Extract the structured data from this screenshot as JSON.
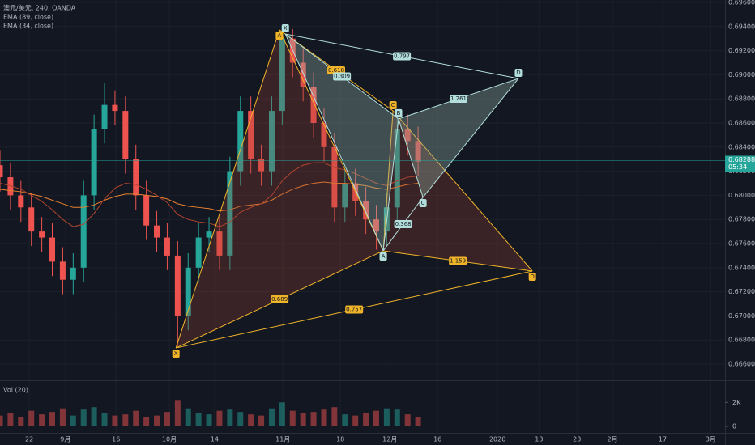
{
  "chart_data": {
    "type": "candlestick",
    "title": "澳元/美元, 240, OANDA",
    "indicators": [
      {
        "name": "EMA (89, close)",
        "color": "#e8812e",
        "values": [
          0.6805,
          0.6804,
          0.6803,
          0.6801,
          0.6799,
          0.6796,
          0.6793,
          0.679,
          0.679,
          0.6792,
          0.6796,
          0.6799,
          0.6801,
          0.6801,
          0.68,
          0.6799,
          0.6797,
          0.6793,
          0.6791,
          0.679,
          0.6789,
          0.6787,
          0.6788,
          0.6791,
          0.6792,
          0.6793,
          0.6796,
          0.6801,
          0.6805,
          0.6808,
          0.681,
          0.6811,
          0.681,
          0.681,
          0.6809,
          0.6808,
          0.6806,
          0.6805,
          0.6807,
          0.6809,
          0.681
        ]
      },
      {
        "name": "EMA (34, close)",
        "color": "#b5452f",
        "values": [
          0.681,
          0.6808,
          0.6805,
          0.68,
          0.6795,
          0.6788,
          0.678,
          0.6774,
          0.6776,
          0.6785,
          0.6797,
          0.6806,
          0.681,
          0.6809,
          0.6805,
          0.68,
          0.6794,
          0.6784,
          0.678,
          0.6778,
          0.6777,
          0.6774,
          0.6778,
          0.6786,
          0.679,
          0.6793,
          0.68,
          0.6812,
          0.682,
          0.6825,
          0.6827,
          0.6827,
          0.6823,
          0.6821,
          0.6818,
          0.6814,
          0.681,
          0.6808,
          0.6812,
          0.6815,
          0.6816
        ]
      }
    ],
    "volume_title": "Vol (20)",
    "up_color": "#26a69a",
    "down_color": "#ef5350",
    "x": [
      0,
      3,
      6,
      9,
      12,
      15,
      18,
      21,
      24,
      27,
      30,
      33,
      36,
      39,
      42,
      45,
      48,
      51,
      54,
      57,
      60,
      63,
      66,
      69,
      72,
      75,
      78,
      81,
      84,
      87,
      90,
      93,
      96,
      99,
      102,
      105,
      108,
      111,
      114,
      117,
      120
    ],
    "open": [
      0.6825,
      0.6815,
      0.68,
      0.679,
      0.677,
      0.6765,
      0.6745,
      0.673,
      0.674,
      0.68,
      0.6855,
      0.6875,
      0.687,
      0.683,
      0.68,
      0.6775,
      0.6765,
      0.675,
      0.67,
      0.674,
      0.6765,
      0.677,
      0.675,
      0.682,
      0.687,
      0.683,
      0.682,
      0.687,
      0.693,
      0.691,
      0.689,
      0.686,
      0.684,
      0.679,
      0.681,
      0.6795,
      0.678,
      0.677,
      0.679,
      0.6855,
      0.6845
    ],
    "high": [
      0.6837,
      0.6827,
      0.6812,
      0.6802,
      0.6782,
      0.6777,
      0.6757,
      0.6752,
      0.6812,
      0.6867,
      0.6893,
      0.6887,
      0.6882,
      0.6842,
      0.6812,
      0.6787,
      0.6777,
      0.6762,
      0.6752,
      0.6777,
      0.6782,
      0.6782,
      0.6832,
      0.6882,
      0.6882,
      0.6842,
      0.6882,
      0.694,
      0.6938,
      0.6922,
      0.6902,
      0.6872,
      0.6852,
      0.6822,
      0.6822,
      0.6807,
      0.6792,
      0.6802,
      0.6865,
      0.6867,
      0.6857
    ],
    "low": [
      0.6803,
      0.6788,
      0.6778,
      0.6758,
      0.6753,
      0.6733,
      0.6718,
      0.6718,
      0.6728,
      0.6788,
      0.6843,
      0.6858,
      0.6818,
      0.6788,
      0.6763,
      0.6753,
      0.6738,
      0.6675,
      0.6688,
      0.6728,
      0.6753,
      0.6738,
      0.6738,
      0.6808,
      0.6818,
      0.6808,
      0.6808,
      0.6858,
      0.6898,
      0.6878,
      0.6848,
      0.6828,
      0.6778,
      0.6778,
      0.6783,
      0.6768,
      0.6755,
      0.6758,
      0.6778,
      0.6833,
      0.6816
    ],
    "close": [
      0.6815,
      0.68,
      0.679,
      0.677,
      0.6765,
      0.6745,
      0.673,
      0.674,
      0.68,
      0.6855,
      0.6875,
      0.687,
      0.683,
      0.68,
      0.6775,
      0.6765,
      0.675,
      0.67,
      0.674,
      0.6765,
      0.677,
      0.675,
      0.682,
      0.687,
      0.683,
      0.682,
      0.687,
      0.693,
      0.691,
      0.689,
      0.686,
      0.684,
      0.679,
      0.681,
      0.6795,
      0.678,
      0.677,
      0.679,
      0.6855,
      0.6845,
      0.6828
    ],
    "volume": [
      900,
      1100,
      800,
      1300,
      1000,
      1200,
      1500,
      900,
      1400,
      1600,
      1100,
      900,
      1000,
      1300,
      800,
      900,
      1200,
      2200,
      1500,
      1100,
      1000,
      1300,
      1400,
      1200,
      1000,
      900,
      1500,
      2000,
      1300,
      1100,
      1200,
      1400,
      1600,
      1000,
      900,
      1100,
      1300,
      1500,
      1400,
      1000,
      800
    ],
    "xlim": [
      0,
      208.1
    ],
    "ylim": [
      0.66466,
      0.6962
    ],
    "vol_ylim": [
      0,
      3700
    ],
    "vol_ticks": [
      {
        "value": 2000,
        "label": "2K"
      },
      0
    ],
    "yticks": [
      {
        "value": 0.666,
        "label": "0.66600"
      },
      {
        "value": 0.668,
        "label": "0.66800"
      },
      {
        "value": 0.67,
        "label": "0.67000"
      },
      {
        "value": 0.672,
        "label": "0.67200"
      },
      {
        "value": 0.674,
        "label": "0.67400"
      },
      {
        "value": 0.676,
        "label": "0.67600"
      },
      {
        "value": 0.678,
        "label": "0.67800"
      },
      {
        "value": 0.68,
        "label": "0.68000"
      },
      {
        "value": 0.682,
        "label": "0.68200"
      },
      {
        "value": 0.684,
        "label": "0.68400"
      },
      {
        "value": 0.686,
        "label": "0.68600"
      },
      {
        "value": 0.688,
        "label": "0.68800"
      },
      {
        "value": 0.69,
        "label": "0.69000"
      },
      {
        "value": 0.692,
        "label": "0.69200"
      },
      {
        "value": 0.694,
        "label": "0.69400"
      },
      {
        "value": 0.696,
        "label": "0.69600"
      }
    ],
    "xticks": [
      {
        "value": 8.4,
        "label": "22"
      },
      {
        "value": 18.8,
        "label": "9月"
      },
      {
        "value": 33.3,
        "label": "16"
      },
      {
        "value": 48.6,
        "label": "10月"
      },
      {
        "value": 61.6,
        "label": "14"
      },
      {
        "value": 81.2,
        "label": "11月"
      },
      {
        "value": 97.7,
        "label": "18"
      },
      {
        "value": 111.9,
        "label": "12月"
      },
      {
        "value": 125.6,
        "label": "16"
      },
      {
        "value": 142.8,
        "label": "2020"
      },
      {
        "value": 154.7,
        "label": "13"
      },
      {
        "value": 165.6,
        "label": "23"
      },
      {
        "value": 175.8,
        "label": "2月"
      },
      {
        "value": 190.2,
        "label": "17"
      },
      {
        "value": 204,
        "label": "3月"
      }
    ],
    "last_price": 0.68288,
    "countdown": "05:34",
    "patterns": [
      {
        "color": "#f0b429",
        "fill": "rgba(160,70,50,0.28)",
        "label_text": "#131722",
        "points": [
          {
            "label": "X",
            "x": 50.5,
            "y": 0.66734
          },
          {
            "label": "A",
            "x": 80.2,
            "y": 0.69372
          },
          {
            "label": "B",
            "x": 110.0,
            "y": 0.6754
          },
          {
            "label": "C",
            "x": 112.8,
            "y": 0.68701
          },
          {
            "label": "D",
            "x": 152.8,
            "y": 0.67372
          }
        ],
        "ratios": {
          "XB": "0.689",
          "XD": "0.757",
          "BD": "1.159",
          "AC": "0.618"
        }
      },
      {
        "color": "#b2dfdb",
        "fill": "rgba(150,180,170,0.35)",
        "label_text": "#131722",
        "points": [
          {
            "label": "X",
            "x": 81.9,
            "y": 0.69338
          },
          {
            "label": "A",
            "x": 110.0,
            "y": 0.6754
          },
          {
            "label": "B",
            "x": 114.4,
            "y": 0.68634
          },
          {
            "label": "C",
            "x": 121.4,
            "y": 0.67983
          },
          {
            "label": "D",
            "x": 148.8,
            "y": 0.68969
          }
        ],
        "ratios": {
          "XB": "0.309",
          "XD": "0.797",
          "BD": "1.261",
          "AC": "0.368"
        }
      }
    ]
  }
}
